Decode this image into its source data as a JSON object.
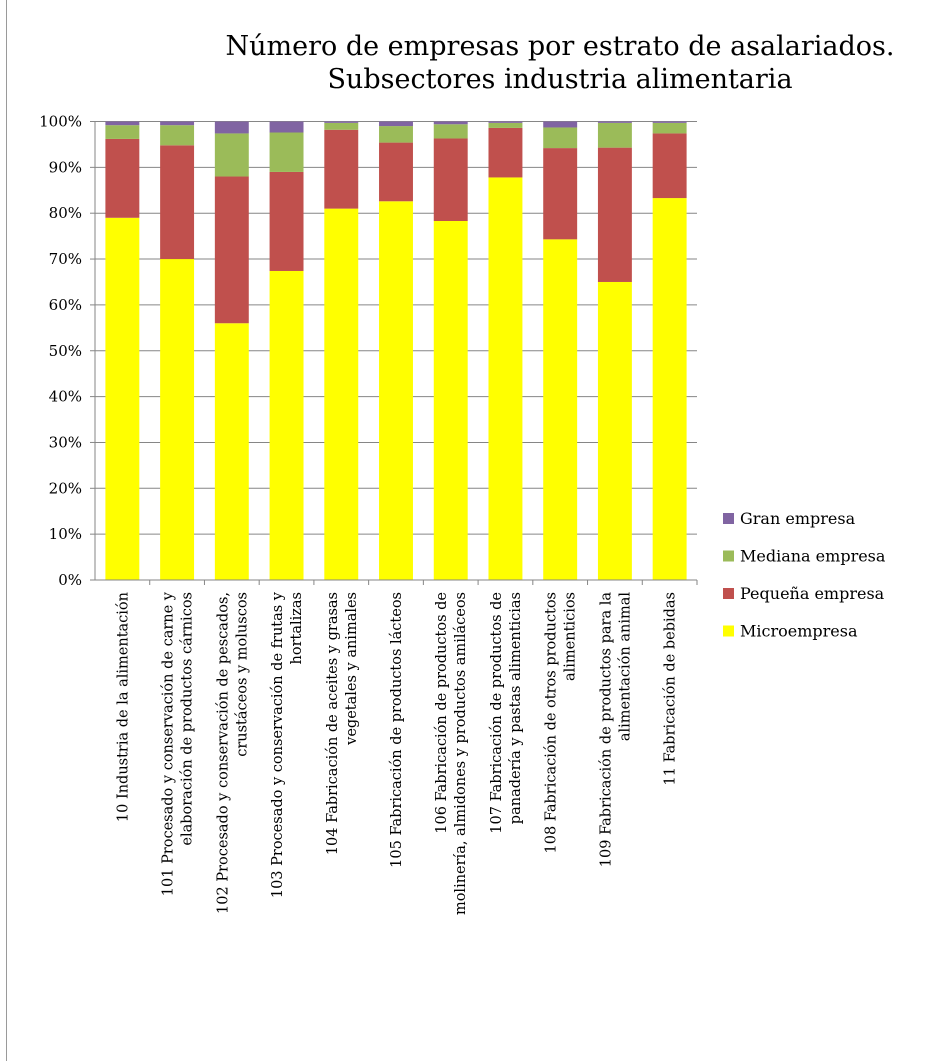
{
  "chart_data": {
    "type": "bar",
    "stacked": true,
    "percent": true,
    "title": [
      "Número de empresas por estrato de asalariados.",
      "Subsectores industria alimentaria"
    ],
    "ylim": [
      0,
      100
    ],
    "yticks": [
      "0%",
      "10%",
      "20%",
      "30%",
      "40%",
      "50%",
      "60%",
      "70%",
      "80%",
      "90%",
      "100%"
    ],
    "grid": true,
    "legend_position": "right",
    "categories": [
      [
        "10 Industria de la alimentación"
      ],
      [
        "101 Procesado y conservación de carne y",
        "elaboración de productos cárnicos"
      ],
      [
        "102 Procesado y conservación de pescados,",
        "crustáceos y moluscos"
      ],
      [
        "103 Procesado y conservación de frutas y",
        "hortalizas"
      ],
      [
        "104 Fabricación de aceites y grasas",
        "vegetales y animales"
      ],
      [
        "105 Fabricación de productos lácteos"
      ],
      [
        "106 Fabricación de productos de",
        "molinería, almidones y productos amiláceos"
      ],
      [
        "107 Fabricación de productos de",
        "panadería y pastas alimenticias"
      ],
      [
        "108 Fabricación de otros productos",
        "alimenticios"
      ],
      [
        "109 Fabricación de productos para la",
        "alimentación animal"
      ],
      [
        "11 Fabricación de bebidas"
      ]
    ],
    "series": [
      {
        "name": "Microempresa",
        "color": "#ffff00",
        "values": [
          79,
          70,
          56,
          67.4,
          81,
          82.6,
          78.3,
          87.8,
          74.3,
          65,
          83.3
        ]
      },
      {
        "name": "Pequeña empresa",
        "color": "#c0504d",
        "values": [
          17.2,
          24.8,
          32,
          21.6,
          17.2,
          12.8,
          18,
          10.8,
          19.9,
          29.3,
          14.1
        ]
      },
      {
        "name": "Mediana empresa",
        "color": "#9bbb59",
        "values": [
          3,
          4.4,
          9.4,
          8.6,
          1.5,
          3.6,
          3.1,
          1.1,
          4.5,
          5.4,
          2.3
        ]
      },
      {
        "name": "Gran empresa",
        "color": "#8064a2",
        "values": [
          0.8,
          0.8,
          2.6,
          2.4,
          0.3,
          1,
          0.6,
          0.3,
          1.3,
          0.3,
          0.3
        ]
      }
    ],
    "legend_order": [
      "Gran empresa",
      "Mediana empresa",
      "Pequeña empresa",
      "Microempresa"
    ]
  }
}
